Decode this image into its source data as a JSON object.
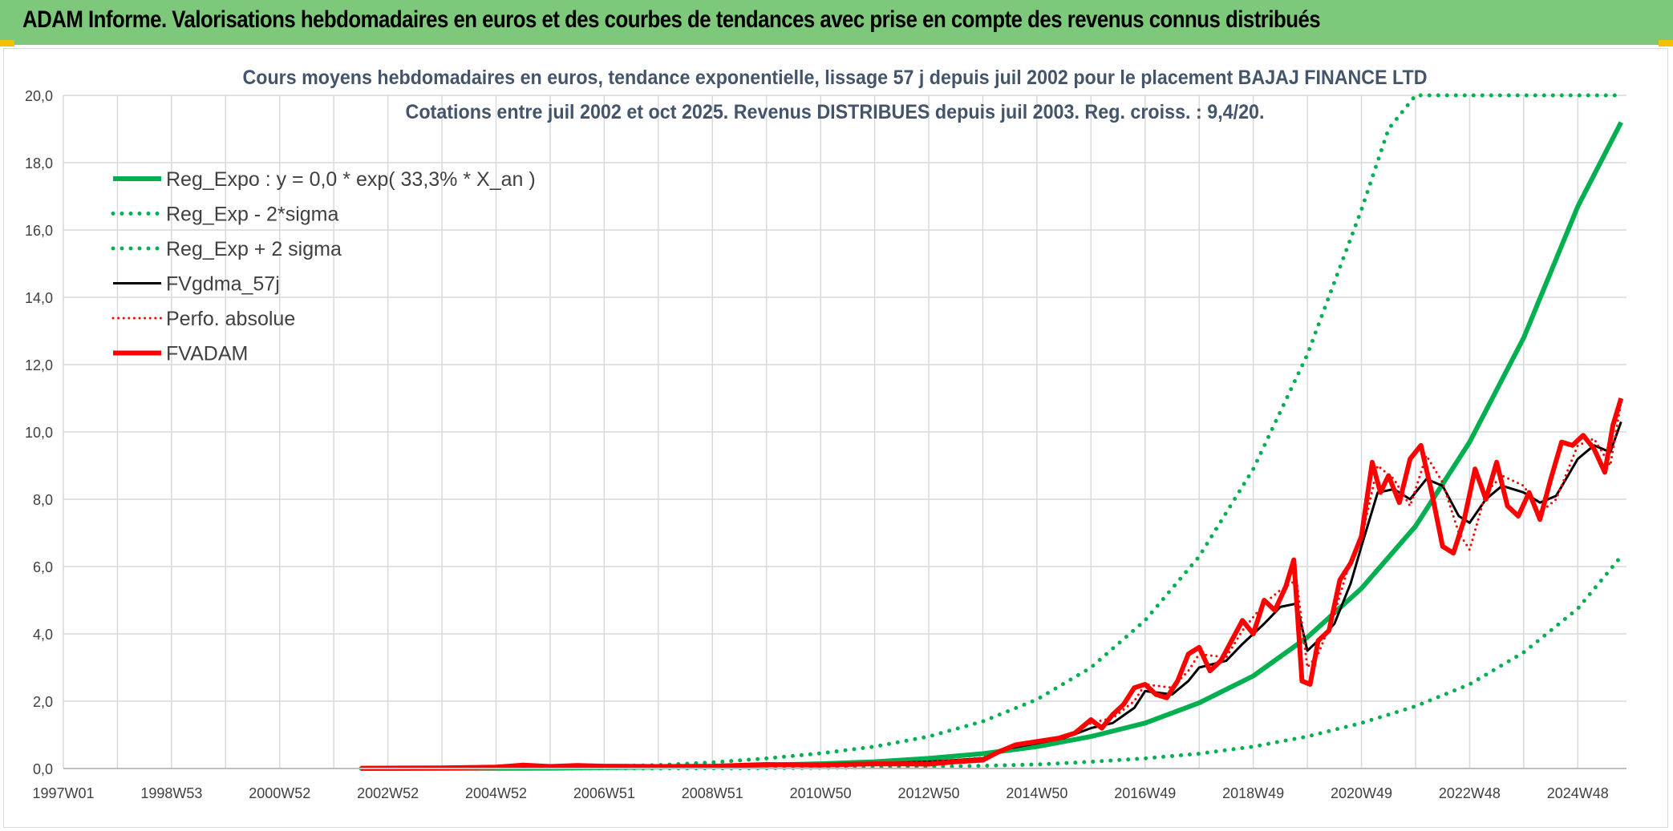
{
  "banner": {
    "title": "ADAM Informe. Valorisations hebdomadaires en euros et des courbes de tendances avec prise en compte des revenus connus distribués",
    "background": "#7dc87a"
  },
  "chart_data": {
    "type": "line",
    "title": "Cours moyens hebdomadaires en euros, tendance exponentielle, lissage 57 j depuis juil 2002 pour le placement BAJAJ FINANCE LTD",
    "subtitle": "Cotations entre juil 2002 et oct 2025. Revenus DISTRIBUES depuis juil 2003. Reg. croiss. : 9,4/20.",
    "xlabel": "",
    "ylabel": "",
    "xlim": [
      1997.0,
      2025.9
    ],
    "ylim": [
      0,
      20
    ],
    "y_ticks": [
      0,
      2,
      4,
      6,
      8,
      10,
      12,
      14,
      16,
      18,
      20
    ],
    "y_tick_labels": [
      "0,0",
      "2,0",
      "4,0",
      "6,0",
      "8,0",
      "10,0",
      "12,0",
      "14,0",
      "16,0",
      "18,0",
      "20,0"
    ],
    "x_ticks": [
      1997.0,
      1999.0,
      2001.0,
      2003.0,
      2005.0,
      2007.0,
      2009.0,
      2011.0,
      2013.0,
      2015.0,
      2017.0,
      2019.0,
      2021.0,
      2023.0,
      2025.0
    ],
    "x_tick_labels": [
      "1997W01",
      "1998W53",
      "2000W52",
      "2002W52",
      "2004W52",
      "2006W51",
      "2008W51",
      "2010W50",
      "2012W50",
      "2014W50",
      "2016W49",
      "2018W49",
      "2020W49",
      "2022W48",
      "2024W48"
    ],
    "grid": true,
    "legend_position": "top-left",
    "series": [
      {
        "name": "Reg_Expo : y = 0,0 * exp( 33,3% *  X_an )",
        "color": "#00b050",
        "style": "solid",
        "width": 6,
        "x": [
          2002.5,
          2004.0,
          2006.0,
          2008.0,
          2009.0,
          2010.0,
          2011.0,
          2012.0,
          2013.0,
          2014.0,
          2015.0,
          2016.0,
          2017.0,
          2018.0,
          2019.0,
          2020.0,
          2021.0,
          2022.0,
          2023.0,
          2024.0,
          2025.0,
          2025.8
        ],
        "values": [
          0.001,
          0.002,
          0.009,
          0.04,
          0.06,
          0.1,
          0.14,
          0.2,
          0.3,
          0.44,
          0.65,
          0.95,
          1.35,
          1.95,
          2.75,
          3.9,
          5.35,
          7.2,
          9.7,
          12.8,
          16.7,
          19.2
        ]
      },
      {
        "name": "Reg_Exp - 2*sigma",
        "color": "#00b050",
        "style": "dotted",
        "width": 5,
        "x": [
          2002.5,
          2006.0,
          2008.0,
          2010.0,
          2012.0,
          2013.0,
          2014.0,
          2015.0,
          2016.0,
          2017.0,
          2018.0,
          2019.0,
          2020.0,
          2021.0,
          2022.0,
          2023.0,
          2024.0,
          2025.0,
          2025.8
        ],
        "values": [
          0.0,
          0.001,
          0.004,
          0.01,
          0.03,
          0.05,
          0.08,
          0.12,
          0.2,
          0.3,
          0.44,
          0.65,
          0.95,
          1.35,
          1.85,
          2.5,
          3.45,
          4.75,
          6.3
        ]
      },
      {
        "name": "Reg_Exp + 2 sigma",
        "color": "#00b050",
        "style": "dotted",
        "width": 5,
        "x": [
          2002.5,
          2006.0,
          2008.0,
          2009.0,
          2010.0,
          2011.0,
          2012.0,
          2013.0,
          2014.0,
          2015.0,
          2016.0,
          2017.0,
          2018.0,
          2019.0,
          2020.0,
          2021.0,
          2021.5,
          2022.0,
          2025.8
        ],
        "values": [
          0.002,
          0.03,
          0.1,
          0.18,
          0.3,
          0.45,
          0.65,
          0.95,
          1.4,
          2.05,
          3.0,
          4.4,
          6.3,
          8.9,
          12.3,
          16.6,
          19.0,
          20.0,
          20.0
        ]
      },
      {
        "name": "FVgdma_57j",
        "color": "#000000",
        "style": "solid",
        "width": 3,
        "x": [
          2002.5,
          2004.0,
          2005.5,
          2006.5,
          2008.0,
          2009.0,
          2010.0,
          2011.0,
          2012.0,
          2013.0,
          2014.0,
          2014.5,
          2015.0,
          2015.5,
          2016.0,
          2016.4,
          2016.8,
          2017.0,
          2017.5,
          2017.8,
          2018.0,
          2018.5,
          2018.8,
          2019.2,
          2019.5,
          2019.8,
          2020.0,
          2020.2,
          2020.5,
          2020.8,
          2021.0,
          2021.3,
          2021.6,
          2021.9,
          2022.2,
          2022.5,
          2022.8,
          2023.0,
          2023.3,
          2023.6,
          2024.0,
          2024.3,
          2024.6,
          2025.0,
          2025.3,
          2025.6,
          2025.8
        ],
        "values": [
          0.01,
          0.02,
          0.06,
          0.08,
          0.07,
          0.08,
          0.1,
          0.12,
          0.15,
          0.2,
          0.3,
          0.6,
          0.75,
          0.9,
          1.2,
          1.35,
          1.8,
          2.3,
          2.2,
          2.6,
          3.0,
          3.2,
          3.7,
          4.3,
          4.8,
          4.9,
          3.5,
          3.8,
          4.3,
          5.5,
          6.6,
          8.2,
          8.3,
          8.0,
          8.6,
          8.4,
          7.5,
          7.3,
          8.0,
          8.4,
          8.2,
          7.9,
          8.1,
          9.2,
          9.6,
          9.4,
          10.3
        ]
      },
      {
        "name": "Perfo. absolue",
        "color": "#ff0000",
        "style": "dotted",
        "width": 3,
        "x": [
          2002.5,
          2004.0,
          2005.5,
          2006.5,
          2008.0,
          2009.0,
          2010.0,
          2011.0,
          2012.0,
          2013.0,
          2014.0,
          2014.5,
          2015.0,
          2015.5,
          2016.0,
          2016.4,
          2016.8,
          2017.0,
          2017.5,
          2017.8,
          2018.0,
          2018.5,
          2018.8,
          2019.2,
          2019.5,
          2019.8,
          2020.0,
          2020.2,
          2020.5,
          2020.8,
          2021.0,
          2021.3,
          2021.6,
          2021.9,
          2022.2,
          2022.5,
          2022.8,
          2023.0,
          2023.3,
          2023.6,
          2024.0,
          2024.3,
          2024.6,
          2025.0,
          2025.3,
          2025.6,
          2025.8
        ],
        "values": [
          0.01,
          0.02,
          0.07,
          0.09,
          0.07,
          0.08,
          0.1,
          0.12,
          0.15,
          0.2,
          0.32,
          0.65,
          0.8,
          0.95,
          1.35,
          1.5,
          2.0,
          2.5,
          2.4,
          2.9,
          3.4,
          3.3,
          4.1,
          4.9,
          5.3,
          5.6,
          3.0,
          3.4,
          4.6,
          6.2,
          6.8,
          9.0,
          8.6,
          7.8,
          9.3,
          8.5,
          7.0,
          6.5,
          8.2,
          8.7,
          8.4,
          7.6,
          8.0,
          9.6,
          9.8,
          9.0,
          10.9
        ]
      },
      {
        "name": "FVADAM",
        "color": "#ff0000",
        "style": "solid",
        "width": 6,
        "x": [
          2002.5,
          2004.0,
          2005.0,
          2005.5,
          2006.0,
          2006.5,
          2007.0,
          2008.0,
          2009.0,
          2010.0,
          2011.0,
          2012.0,
          2013.0,
          2013.5,
          2014.0,
          2014.3,
          2014.6,
          2015.0,
          2015.4,
          2015.7,
          2016.0,
          2016.2,
          2016.4,
          2016.6,
          2016.8,
          2017.0,
          2017.2,
          2017.4,
          2017.6,
          2017.8,
          2018.0,
          2018.2,
          2018.4,
          2018.6,
          2018.8,
          2019.0,
          2019.2,
          2019.4,
          2019.6,
          2019.75,
          2019.9,
          2020.05,
          2020.2,
          2020.4,
          2020.6,
          2020.8,
          2021.0,
          2021.2,
          2021.35,
          2021.5,
          2021.7,
          2021.9,
          2022.1,
          2022.3,
          2022.5,
          2022.7,
          2022.9,
          2023.1,
          2023.3,
          2023.5,
          2023.7,
          2023.9,
          2024.1,
          2024.3,
          2024.5,
          2024.7,
          2024.9,
          2025.1,
          2025.3,
          2025.5,
          2025.65,
          2025.8
        ],
        "values": [
          0.01,
          0.02,
          0.04,
          0.1,
          0.06,
          0.09,
          0.07,
          0.06,
          0.07,
          0.12,
          0.1,
          0.14,
          0.13,
          0.2,
          0.25,
          0.5,
          0.7,
          0.8,
          0.9,
          1.05,
          1.45,
          1.2,
          1.6,
          1.9,
          2.4,
          2.5,
          2.2,
          2.1,
          2.6,
          3.4,
          3.6,
          2.9,
          3.2,
          3.8,
          4.4,
          4.0,
          5.0,
          4.7,
          5.4,
          6.2,
          2.6,
          2.5,
          3.8,
          4.1,
          5.6,
          6.1,
          6.9,
          9.1,
          8.2,
          8.7,
          7.9,
          9.2,
          9.6,
          8.2,
          6.6,
          6.4,
          7.4,
          8.9,
          8.0,
          9.1,
          7.8,
          7.5,
          8.2,
          7.4,
          8.6,
          9.7,
          9.6,
          9.9,
          9.5,
          8.8,
          10.2,
          11.0
        ]
      }
    ]
  }
}
